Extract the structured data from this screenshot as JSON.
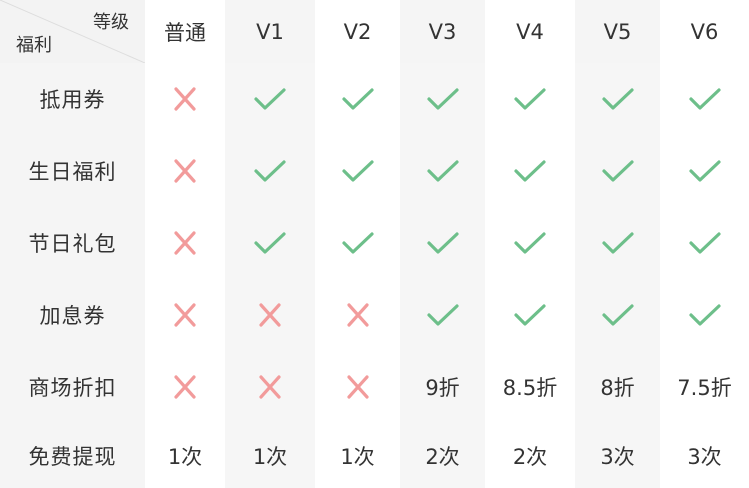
{
  "header": {
    "corner_top": "等级",
    "corner_bottom": "福利",
    "levels": [
      "普通",
      "V1",
      "V2",
      "V3",
      "V4",
      "V5",
      "V6"
    ]
  },
  "rows": [
    {
      "label": "抵用券",
      "cells": [
        "cross-icon",
        "check-icon",
        "check-icon",
        "check-icon",
        "check-icon",
        "check-icon",
        "check-icon"
      ]
    },
    {
      "label": "生日福利",
      "cells": [
        "cross-icon",
        "check-icon",
        "check-icon",
        "check-icon",
        "check-icon",
        "check-icon",
        "check-icon"
      ]
    },
    {
      "label": "节日礼包",
      "cells": [
        "cross-icon",
        "check-icon",
        "check-icon",
        "check-icon",
        "check-icon",
        "check-icon",
        "check-icon"
      ]
    },
    {
      "label": "加息券",
      "cells": [
        "cross-icon",
        "cross-icon",
        "cross-icon",
        "check-icon",
        "check-icon",
        "check-icon",
        "check-icon"
      ]
    },
    {
      "label": "商场折扣",
      "cells": [
        "cross-icon",
        "cross-icon",
        "cross-icon",
        "9折",
        "8.5折",
        "8折",
        "7.5折"
      ]
    },
    {
      "label": "免费提现",
      "cells": [
        "1次",
        "1次",
        "1次",
        "2次",
        "2次",
        "3次",
        "3次"
      ]
    }
  ],
  "colors": {
    "check": "#6dbf8a",
    "cross": "#f29b9b",
    "label_bg": "#f5f5f5",
    "stripe_bg": "#f6f6f6"
  }
}
